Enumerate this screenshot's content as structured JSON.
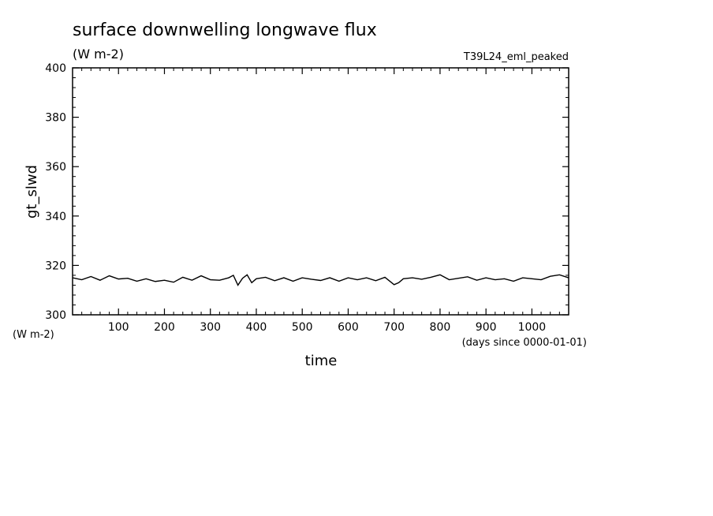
{
  "chart_data": {
    "type": "line",
    "title": "surface downwelling longwave flux",
    "units_label": "(W m-2)",
    "experiment": "T39L24_eml_peaked",
    "ylabel": "gt_slwd",
    "y_units": "(W m-2)",
    "xlabel": "time",
    "x_units": "(days since 0000-01-01)",
    "xlim": [
      0,
      1080
    ],
    "ylim": [
      300,
      400
    ],
    "x_ticks": [
      100,
      200,
      300,
      400,
      500,
      600,
      700,
      800,
      900,
      1000
    ],
    "x_tick_labels": [
      "100",
      "200",
      "300",
      "400",
      "500",
      "600",
      "700",
      "800",
      "900",
      "1000"
    ],
    "y_ticks": [
      300,
      320,
      340,
      360,
      380,
      400
    ],
    "y_tick_labels": [
      "300",
      "320",
      "340",
      "360",
      "380",
      "400"
    ],
    "grid": false,
    "series": [
      {
        "color": "#000000",
        "x": [
          0,
          20,
          40,
          60,
          80,
          100,
          120,
          140,
          160,
          180,
          200,
          220,
          240,
          260,
          280,
          300,
          320,
          340,
          350,
          360,
          370,
          380,
          390,
          400,
          420,
          440,
          460,
          480,
          500,
          520,
          540,
          560,
          580,
          600,
          620,
          640,
          660,
          680,
          700,
          710,
          720,
          740,
          760,
          780,
          800,
          820,
          840,
          860,
          880,
          900,
          920,
          940,
          960,
          980,
          1000,
          1020,
          1040,
          1060,
          1080
        ],
        "y": [
          315.0,
          314.2,
          315.5,
          314.0,
          315.8,
          314.5,
          314.8,
          313.6,
          314.6,
          313.5,
          314.0,
          313.2,
          315.2,
          314.0,
          315.8,
          314.2,
          314.0,
          315.0,
          316.0,
          312.0,
          314.8,
          316.2,
          313.0,
          314.6,
          315.2,
          313.8,
          315.0,
          313.6,
          315.0,
          314.4,
          313.9,
          315.0,
          313.6,
          315.0,
          314.2,
          315.0,
          313.8,
          315.2,
          312.2,
          313.0,
          314.6,
          315.0,
          314.4,
          315.2,
          316.2,
          314.2,
          314.8,
          315.4,
          314.0,
          315.0,
          314.2,
          314.6,
          313.6,
          315.0,
          314.6,
          314.2,
          315.6,
          316.2,
          315.0
        ]
      }
    ]
  }
}
